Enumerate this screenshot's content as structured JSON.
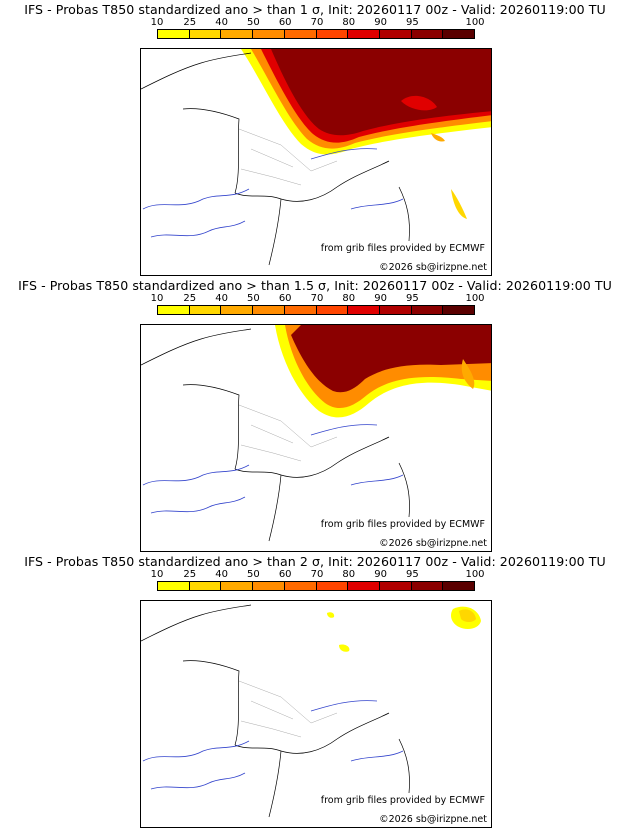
{
  "colors": {
    "scale": [
      "#ffff00",
      "#ffd700",
      "#ffaa00",
      "#ff8c00",
      "#ff6a00",
      "#ff4500",
      "#e00000",
      "#b00000",
      "#8b0000",
      "#5a0000"
    ],
    "river": "#3344cc",
    "border": "#000000",
    "admin": "#aaaaaa"
  },
  "legend": {
    "ticks": [
      "10",
      "25",
      "40",
      "50",
      "60",
      "70",
      "80",
      "90",
      "95",
      "100"
    ]
  },
  "panels": [
    {
      "title": "IFS - Probas T850  standardized ano > than 1 σ, Init: 20260117 00z - Valid: 20260119:00 TU",
      "source": "from grib files provided by ECMWF",
      "copyright": "©2026 sb@irizpne.net"
    },
    {
      "title": "IFS - Probas T850  standardized ano > than 1.5 σ, Init: 20260117 00z - Valid: 20260119:00 TU",
      "source": "from grib files provided by ECMWF",
      "copyright": "©2026 sb@irizpne.net"
    },
    {
      "title": "IFS - Probas T850  standardized ano > than 2 σ, Init: 20260117 00z - Valid: 20260119:00 TU",
      "source": "from grib files provided by ECMWF",
      "copyright": "©2026 sb@irizpne.net"
    }
  ]
}
